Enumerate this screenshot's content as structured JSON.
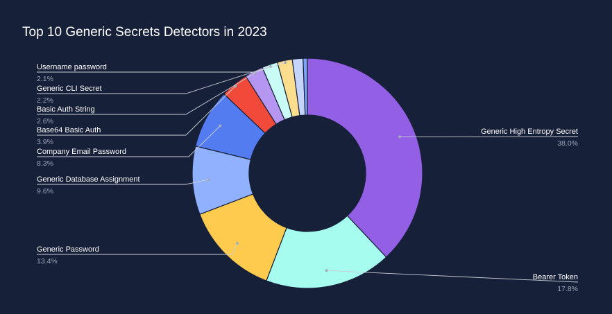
{
  "chart_data": {
    "type": "pie",
    "variant": "donut",
    "title": "Top 10 Generic Secrets Detectors in 2023",
    "slices": [
      {
        "label": "Generic High Entropy Secret",
        "value": 38.0,
        "pct_label": "38.0%",
        "color": "#935fe5"
      },
      {
        "label": "Bearer Token",
        "value": 17.8,
        "pct_label": "17.8%",
        "color": "#a6fcee"
      },
      {
        "label": "Generic Password",
        "value": 13.4,
        "pct_label": "13.4%",
        "color": "#fecb4e"
      },
      {
        "label": "Generic Database Assignment",
        "value": 9.6,
        "pct_label": "9.6%",
        "color": "#90b1fd"
      },
      {
        "label": "Company Email Password",
        "value": 8.3,
        "pct_label": "8.3%",
        "color": "#527cf0"
      },
      {
        "label": "Base64 Basic Auth",
        "value": 3.9,
        "pct_label": "3.9%",
        "color": "#f24a3a"
      },
      {
        "label": "Basic Auth String",
        "value": 2.6,
        "pct_label": "2.6%",
        "color": "#b596f0"
      },
      {
        "label": "Generic CLI Secret",
        "value": 2.2,
        "pct_label": "2.2%",
        "color": "#c8fcf5"
      },
      {
        "label": "Username password",
        "value": 2.1,
        "pct_label": "2.1%",
        "color": "#fddd8e"
      },
      {
        "label": "",
        "value": 1.5,
        "pct_label": "",
        "color": "#c5d4fb"
      },
      {
        "label": "",
        "value": 0.6,
        "pct_label": "",
        "color": "#7ea2f5"
      }
    ]
  }
}
